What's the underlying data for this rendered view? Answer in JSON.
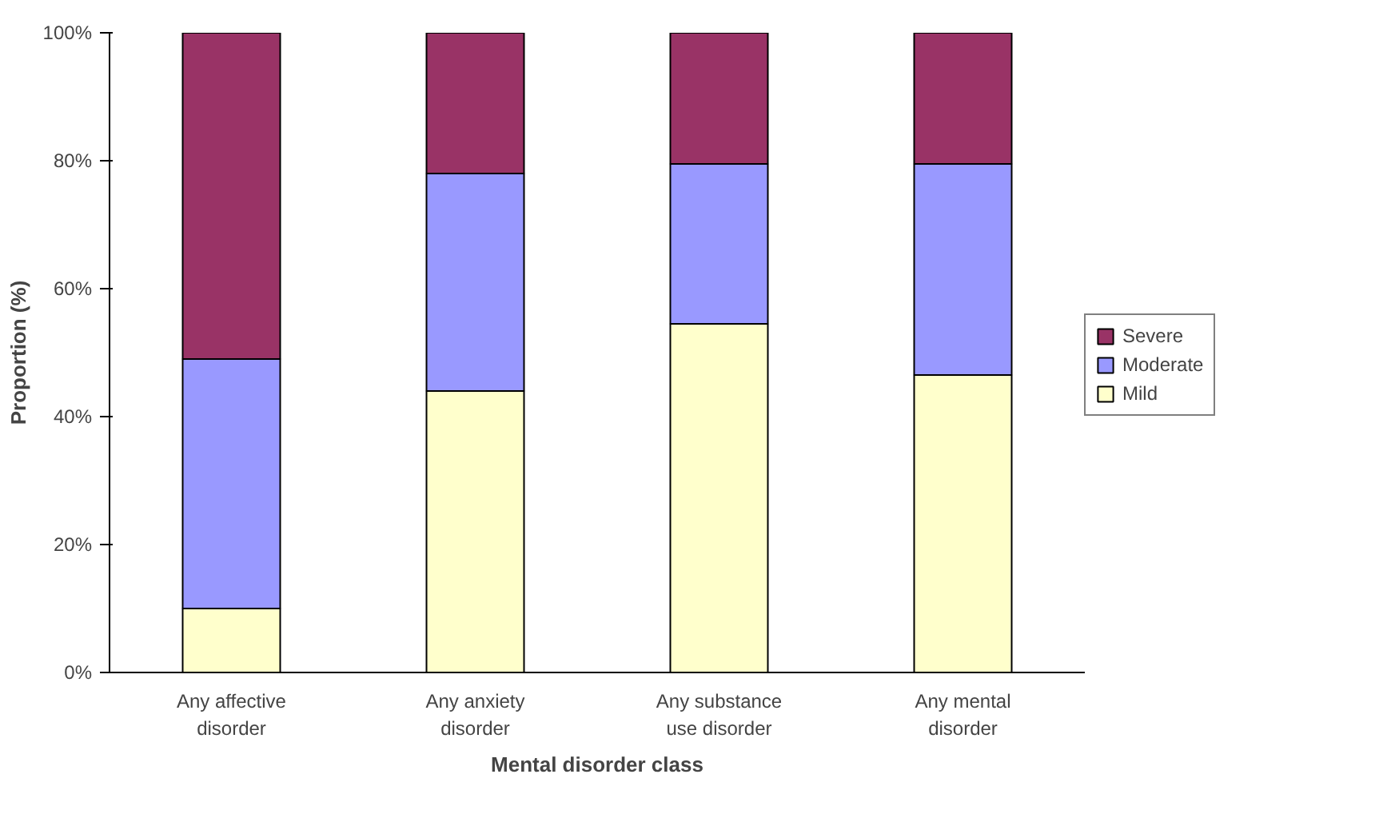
{
  "chart_data": {
    "type": "bar",
    "stacked": true,
    "xlabel": "Mental disorder class",
    "ylabel": "Proportion (%)",
    "categories": [
      "Any affective\ndisorder",
      "Any anxiety\ndisorder",
      "Any substance\nuse disorder",
      "Any mental\ndisorder"
    ],
    "series": [
      {
        "name": "Mild",
        "color": "#ffffcc",
        "values": [
          10,
          44,
          54.5,
          46.5
        ]
      },
      {
        "name": "Moderate",
        "color": "#9999ff",
        "values": [
          39,
          34,
          25,
          33
        ]
      },
      {
        "name": "Severe",
        "color": "#993366",
        "values": [
          51,
          22,
          20.5,
          20.5
        ]
      }
    ],
    "ylim": [
      0,
      100
    ],
    "yticks": [
      {
        "value": 0,
        "label": "0%"
      },
      {
        "value": 20,
        "label": "20%"
      },
      {
        "value": 40,
        "label": "40%"
      },
      {
        "value": 60,
        "label": "60%"
      },
      {
        "value": 80,
        "label": "80%"
      },
      {
        "value": 100,
        "label": "100%"
      }
    ],
    "grid": false,
    "legend": "right"
  }
}
